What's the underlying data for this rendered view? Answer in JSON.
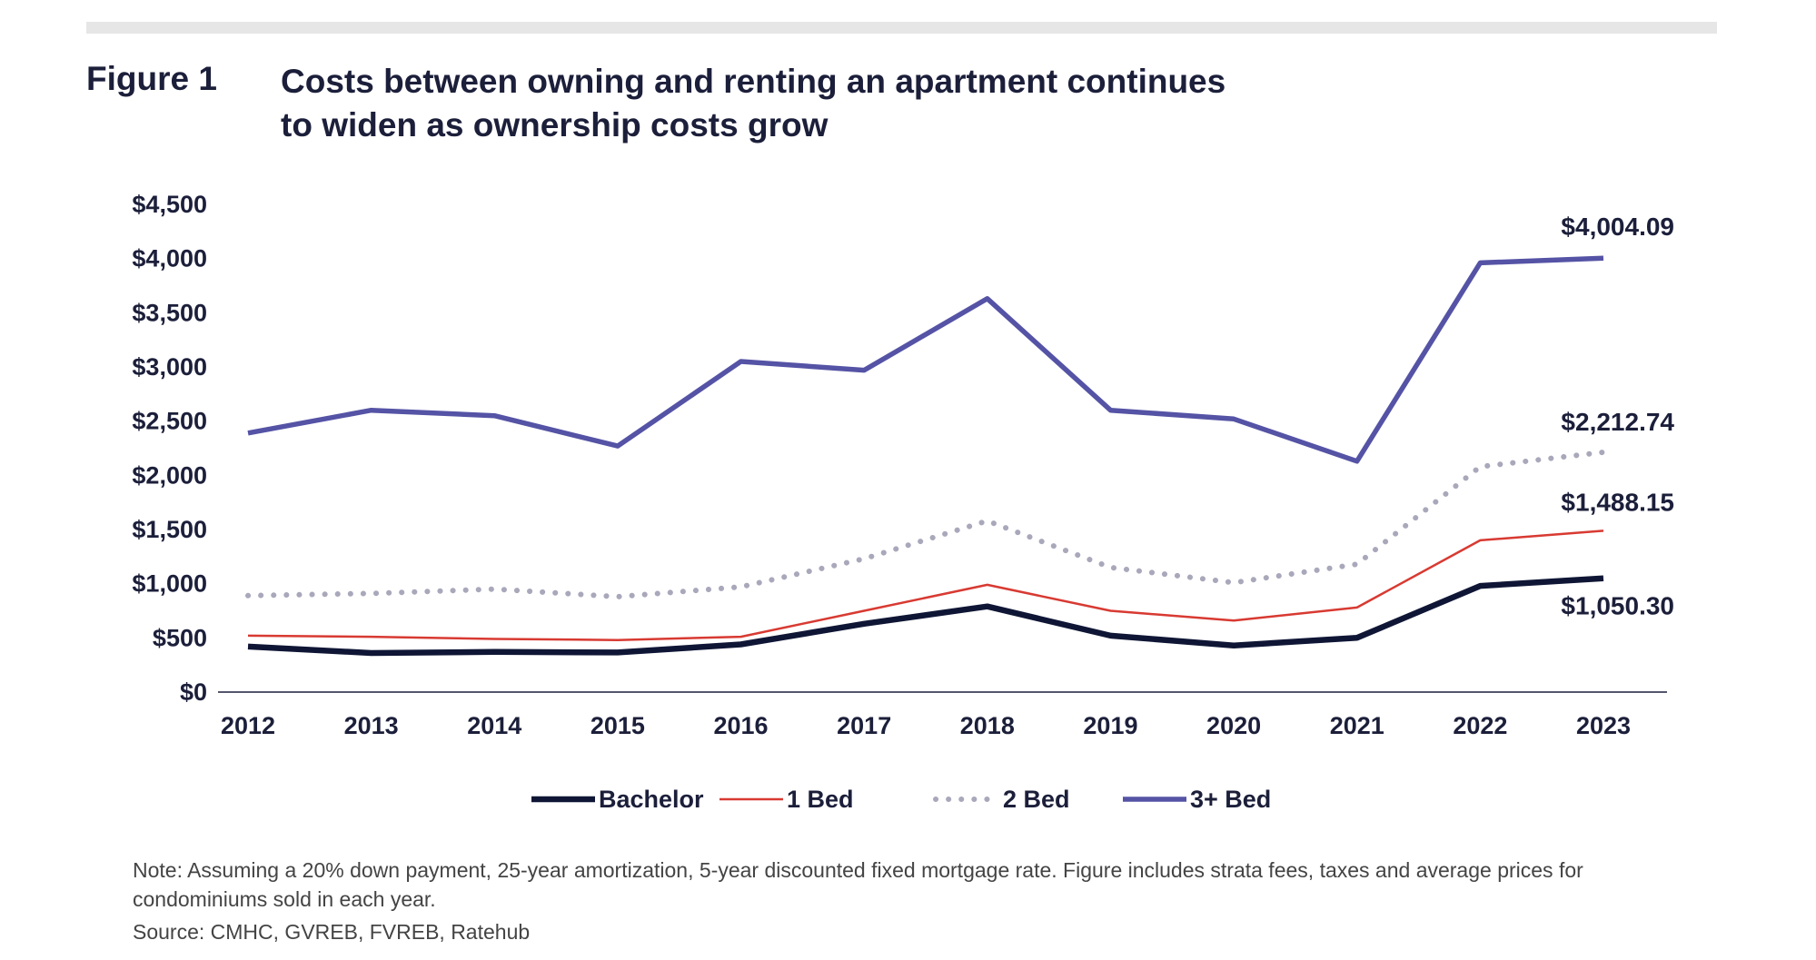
{
  "header": {
    "figure_label": "Figure 1",
    "title_line1": "Costs between owning and renting an apartment continues",
    "title_line2": "to widen as ownership costs grow"
  },
  "chart_data": {
    "type": "line",
    "x": [
      "2012",
      "2013",
      "2014",
      "2015",
      "2016",
      "2017",
      "2018",
      "2019",
      "2020",
      "2021",
      "2022",
      "2023"
    ],
    "y_ticks": [
      "$0",
      "$500",
      "$1,000",
      "$1,500",
      "$2,000",
      "$2,500",
      "$3,000",
      "$3,500",
      "$4,000",
      "$4,500"
    ],
    "ylim": [
      0,
      4500
    ],
    "legend_position": "bottom",
    "series": [
      {
        "name": "Bachelor",
        "color": "#0f1635",
        "style": "solid-thick",
        "values": [
          420,
          360,
          370,
          365,
          440,
          630,
          790,
          520,
          430,
          500,
          980,
          1050.3
        ],
        "end_label": "$1,050.30"
      },
      {
        "name": "1 Bed",
        "color": "#d83a32",
        "style": "solid-thin",
        "values": [
          520,
          510,
          490,
          480,
          510,
          750,
          990,
          750,
          660,
          780,
          1400,
          1488.15
        ],
        "end_label": "$1,488.15"
      },
      {
        "name": "2 Bed",
        "color": "#a9a8bb",
        "style": "dotted",
        "values": [
          890,
          910,
          950,
          880,
          970,
          1230,
          1580,
          1150,
          1010,
          1180,
          2080,
          2212.74
        ],
        "end_label": "$2,212.74"
      },
      {
        "name": "3+ Bed",
        "color": "#5553a5",
        "style": "solid-medium",
        "values": [
          2390,
          2600,
          2550,
          2270,
          3050,
          2970,
          3630,
          2600,
          2520,
          2130,
          3960,
          4004.09
        ],
        "end_label": "$4,004.09"
      }
    ]
  },
  "footer": {
    "note": "Note: Assuming a 20% down payment, 25-year amortization, 5-year discounted fixed mortgage rate. Figure includes strata fees, taxes and average prices for condominiums sold in each year.",
    "source": "Source: CMHC, GVREB, FVREB, Ratehub"
  }
}
